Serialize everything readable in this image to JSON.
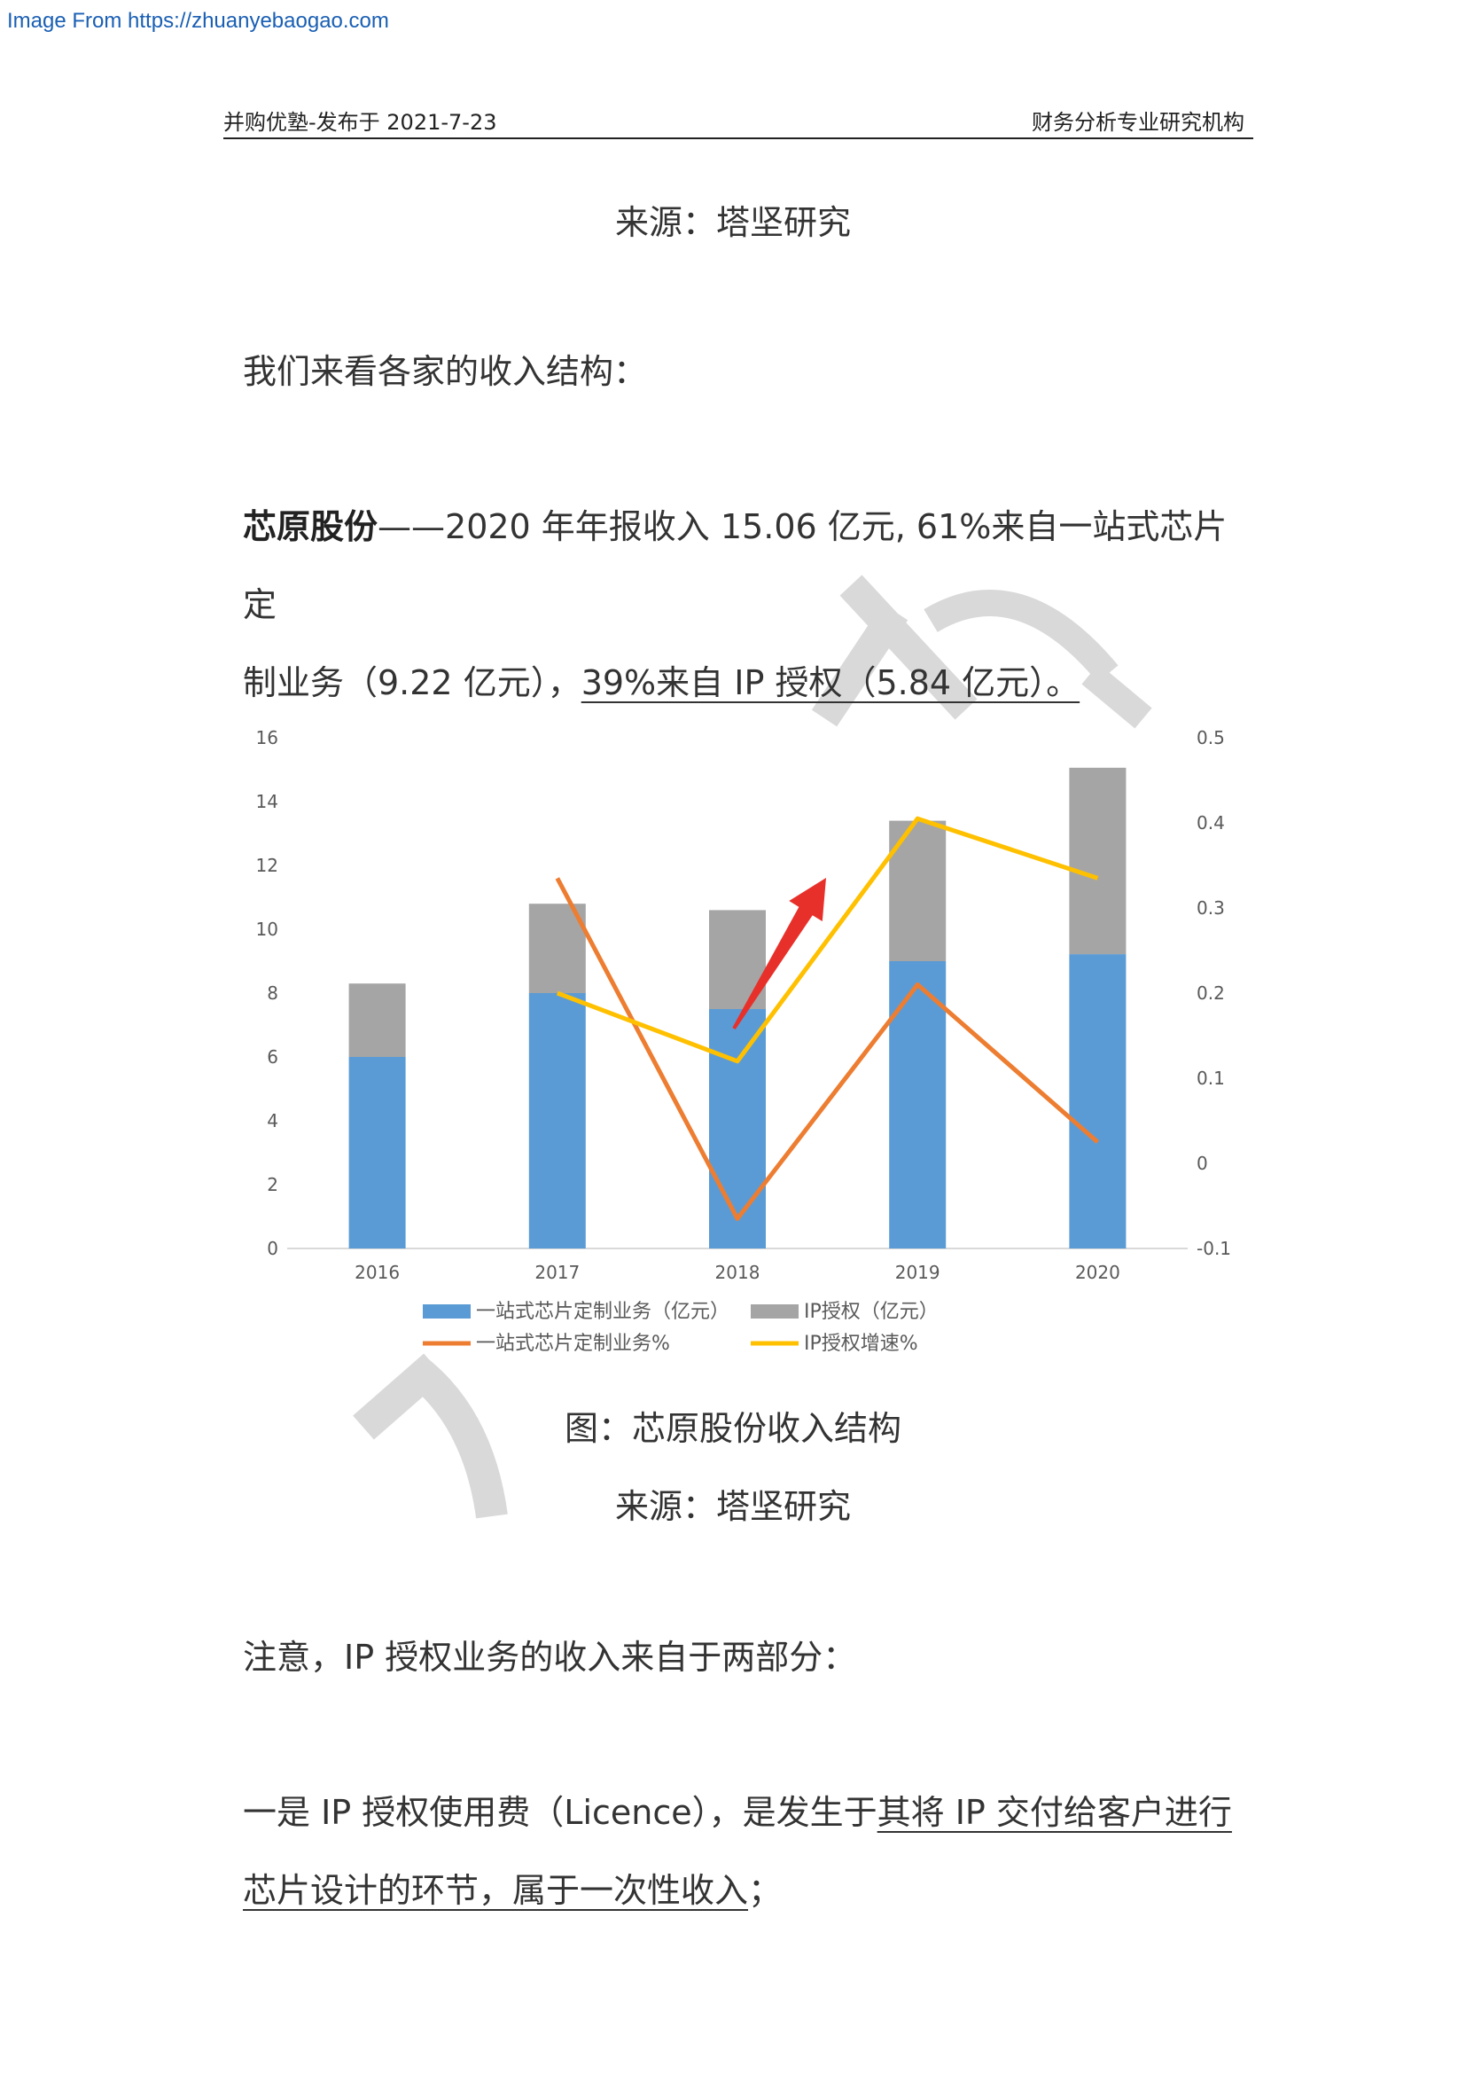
{
  "source_link": "Image From https://zhuanyebaogao.com",
  "header": {
    "left": "并购优塾-发布于 2021-7-23",
    "right": "财务分析专业研究机构"
  },
  "source_top": "来源：塔坚研究",
  "intro": "我们来看各家的收入结构：",
  "company_para": {
    "name": "芯原股份",
    "line1_rest": "——2020 年年报收入 15.06 亿元, 61%来自一站式芯片定",
    "line2_plain": "制业务（9.22 亿元），",
    "line2_underlined": "39%来自 IP 授权（5.84 亿元）。"
  },
  "figure_caption": "图：芯原股份收入结构",
  "source_bottom": "来源：塔坚研究",
  "note": "注意，IP 授权业务的收入来自于两部分：",
  "point1": {
    "line1_plain": "一是 IP 授权使用费（Licence），是发生于",
    "line1_underlined": "其将 IP 交付给客户进行",
    "line2_underlined": "芯片设计的环节，属于一次性收入",
    "line2_tail": "；"
  },
  "colors": {
    "bar_custom": "#5b9bd5",
    "bar_ip": "#a5a5a5",
    "line_custom": "#ed7d31",
    "line_ip": "#ffc000",
    "arrow": "#e8302a",
    "watermark": "#d9d9d9"
  },
  "chart_data": {
    "type": "bar",
    "stacked": true,
    "categories": [
      "2016",
      "2017",
      "2018",
      "2019",
      "2020"
    ],
    "series": [
      {
        "name": "一站式芯片定制业务（亿元）",
        "axis": "left",
        "kind": "bar",
        "values": [
          6.0,
          8.0,
          7.5,
          9.0,
          9.22
        ]
      },
      {
        "name": "IP授权（亿元）",
        "axis": "left",
        "kind": "bar",
        "values": [
          2.3,
          2.8,
          3.1,
          4.4,
          5.84
        ]
      },
      {
        "name": "一站式芯片定制业务%",
        "axis": "right",
        "kind": "line",
        "values": [
          null,
          0.335,
          -0.065,
          0.21,
          0.025
        ]
      },
      {
        "name": "IP授权增速%",
        "axis": "right",
        "kind": "line",
        "values": [
          null,
          0.2,
          0.12,
          0.405,
          0.335
        ]
      }
    ],
    "y_left": {
      "ylim": [
        0,
        16
      ],
      "ticks": [
        "0",
        "2",
        "4",
        "6",
        "8",
        "10",
        "12",
        "14",
        "16"
      ]
    },
    "y_right": {
      "ylim": [
        -0.1,
        0.5
      ],
      "ticks": [
        "-0.1",
        "0",
        "0.1",
        "0.2",
        "0.3",
        "0.4",
        "0.5"
      ]
    },
    "legend": "bottom",
    "grid": false,
    "annotation": "red upward arrow near 2018"
  }
}
